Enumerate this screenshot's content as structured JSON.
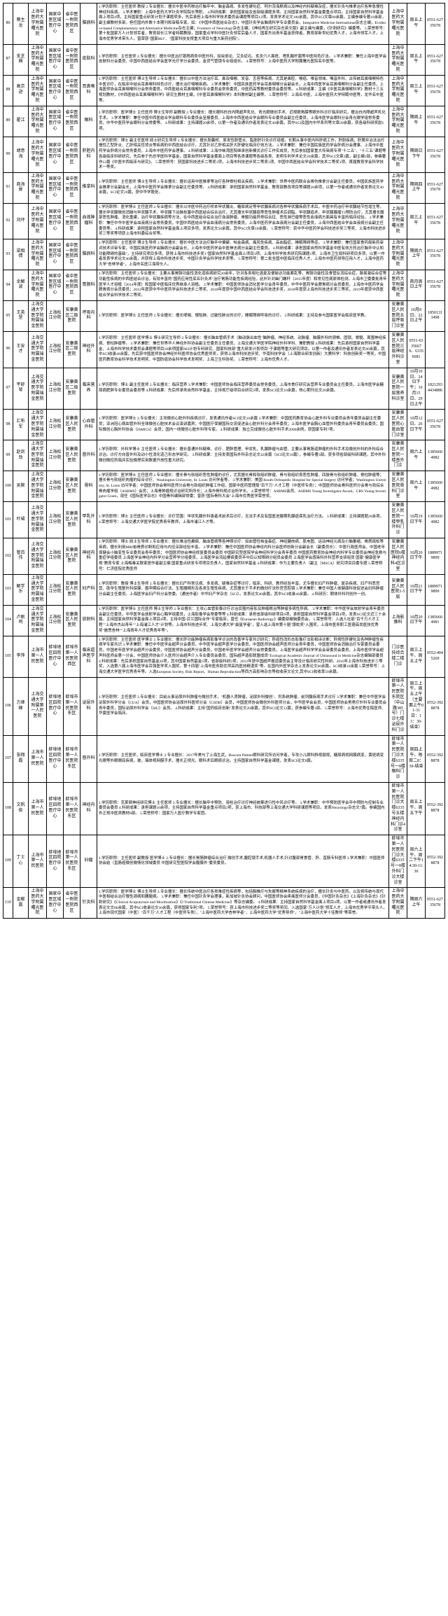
{
  "colors": {
    "border": "#000000",
    "bg": "#ffffff",
    "text": "#000000"
  },
  "fontSize": {
    "cell": 6,
    "desc": 5.5
  },
  "rows": [
    {
      "idx": "86",
      "name": "蔡主龙",
      "hosp": "上海中医药大学附属曙光医院",
      "org": "国家中医区域医疗中心",
      "type": "省中医一附院医院西区",
      "dept": "脑病科",
      "desc": "1.学历职称：主任医师 教授\n2.专业擅长：擅长中医非药物治疗脑卒中、脑金森病、多发性硬化症、阿尔茨海默病以及神经内科疑难杂症，擅长针灸与推拿治疗各种急慢性神经科疾病。\n3.学术兼职：上海中医药大学针灸学院院长等职。\n4.科研成果：承担国家级及省部级课题多项。主持国家自然科学基金委重点项目，主持国家自然科学基金面上项目4项，主持国家重点研发计划子课题项多，先后承担上海市科学技术委员会课题等项目12项。发表学术论文180余篇，其中SCI文章80余篇。主编参编专著10余部，副主编教材多部。担任国内外数十本期刊和审稿专家，如：《中国中西医结合杂志》，中国针灸学会脑病科学专业委员会，Integrative Medicine International杂志主编，Evidence-based Complementary and Alternative Medicine杂志主编；Frontiers of Neurology杂志主编；《神经再生研究杂志英文版》副主编与编委，《针刺研究》编委等。\n5.荣誉称号：第十批国家万人计划领军者，教育部长江学者特聘教授，国家重点学科中医针灸领军后备人才，国家杰出青年基金获得者，教育部新世纪优秀人才，上海市领军人才，上海市优秀学术带头人。曾荣获\"国家863\"、\"国家科技支撑重大项目与重大新药创院\"。",
      "loc": "上海中医药大学附属曙光医院",
      "time": "周五上午",
      "phone": "0551-62735678"
    },
    {
      "idx": "87",
      "name": "支芝娴",
      "hosp": "上海中医药大学附属曙光医院",
      "org": "国家中医区域医疗中心",
      "type": "省中医一附院医院西区",
      "dept": "皮肤科",
      "desc": "1.学历职称：主任医师\n2.专业擅长：擅长中医治疗银屑病类中医外科，如虫邪论、艾灸砭石、炙灸穴人面疮、嗜乳酸杆菌等中医特色疗法。\n3.学术兼职：兼任上海中医学会皮肤科分会委员、中国中西医结合学会医学光疗学分会委员、金货气管镜专业组组长。\n4.荣誉称号：上海中医药大学附属曙光医院名中医等。",
      "loc": "上海中医药大学附属曙光医院",
      "time": "周五上午",
      "phone": "0551-62735678"
    },
    {
      "idx": "88",
      "name": "高京逊",
      "hosp": "上海中医药大学附属曙光医院",
      "org": "国家中医区域医疗中心",
      "type": "省中医一附院医院西区",
      "dept": "耳鼻喉科",
      "desc": "1.学历职称：主任医师 博士生导师\n2.专业擅长：擅长以中医方法治疗耳、鼻及咽喉、发音、舌苔等疾病，尤其是鼻腔、喉癌、嗓音领域、嗓音外科、古传统耳鼻咽喉特色中医诊疗，在临床中结合耳鼻喉科特色诊疗，擅长治疗咽喉疾病。\n3.学术兼职：中国民族医药学会耳鼻咽喉分会副会长，上海中西医学会耳鼻咽喉科分会副主任委员，上海医师协会耳鼻咽喉科分会常务委员，中西医结合耳鼻咽喉科专业委员会常务委员，中医药高等教材委员会委员等。\n4.科研成果：主编《中医耳鼻咽喉科学》教材十三五规划教材，《中西医结合耳鼻咽喉科学》研究生教材主编，《中医耳鼻咽喉科学》本科教材副主编等。\n5.荣誉称号：上海名中医，上海中医药大学特聘中医等，龙华名中医等。",
      "loc": "上海中医药大学附属曙光医院",
      "time": "周三上午",
      "phone": "0551-62735678"
    },
    {
      "idx": "89",
      "name": "翟江",
      "hosp": "上海中医药大学附属曙光医院",
      "org": "国家中医区域医疗中心",
      "type": "省中医一附院医院西区",
      "dept": "眼科",
      "desc": "1.学历职称：医学博士 主任医师 博士生导师 副教授\n2.专业擅长：擅长眼科的白内障超声乳化、青光眼微创手术、近视眼角膜等眼外科诊疗临床研究，擅治白内障超声乳化手术。\n3.学术兼职：兼任中国中西医结合学会眼科专业委员会呈报委员，上海市中西医结合学会眼科专业委员会副主任委员，上海市医学会眼科分会青光眼学组常务委员，中华中医药学会眼科分会常委等。\n4.科研成果：主持课题20余项，以第一作者及通讯作者发表论文40余篇，其中SCI及国内中华系列等文章20余篇，获各级科研奖励5项。",
      "loc": "上海中医药大学附属曙光医院",
      "time": "隔周上午",
      "phone": "0551-62735678"
    },
    {
      "idx": "90",
      "name": "胡意海",
      "hosp": "上海中医药大学附属曙光医院",
      "org": "国家中医区域医疗中心",
      "type": "省中医一附院医院西区",
      "dept": "肝胆内科",
      "desc": "1.学历职称：博士 副主任医师 硕士研究生导师\n2.专业擅长：擅长胆囊桥、原发性胆管炎、脂肪肝针灸诊疗培植，长期从事中医内科肝病工作，肝胆疾病，肝脾并治法治疗慢性乙型肝炎、乙肝相关性肾炎等疾病的中西医结合诊疗，尤其针对乙肝相关肝大肝硬化临床疗效方法。\n3.学术兼职：兼任中国民族医药学会肝病分会理事、上海市中医药学会肝病分会常务委员，上海市中医药学会理事。\n4.科研成果：上海中峡湾医院继承创新模式诊疗工作实成员，先后参加国家重大传染病专项\"十二五\"、\"十三五\"课题等各级临床科研研究，先后参于伤总学医科学基金，国家自然科学基金委面上项目等各类课题等各级各类、发明专利学术论文20余篇，其中SCI文章3篇，副主编1部，参编著作12篇《中医中西临床与研究》。\n5.荣誉称号：获国家科技进步二等奖1项，上海市科技进步奖二等奖1项、中国中西医结合学会科学技术二等奖1项、首届教育学会科学技术一等奖。",
      "loc": "上海中医药大学附属曙光医院",
      "time": "隔周日下午",
      "phone": "0551-62735678"
    },
    {
      "idx": "91",
      "name": "商海曼",
      "hosp": "上海中医药大学附属曙光医院",
      "org": "国家中医区域医疗中心",
      "type": "省中医一附院医院西区",
      "dept": "推拿科",
      "desc": "1.学历职称：主任医师 博士生导师\n2.专业擅长：擅长运用中医推拿等治疗各种脊柱相关疾病。\n3.学术兼职：世界中医药联合会骨伤推拿分会副主任委员，中国民族医药学会推拿分会副会长，上海市中医药学会推拿分会副主任委员等。\n4.科研成果：承担国家自然科学基金、教育部教改项目等课题20余项，以第一作者或通讯作者发表论文40余篇，SCI论文20篇，获中华学股处。",
      "loc": "上海中医药大学附属曙光医院",
      "time": "隔周四上午",
      "phone": "0551-62735678"
    },
    {
      "idx": "92",
      "name": "刘坪",
      "hosp": "上海中医药大学附属曙光医院",
      "org": "国家中医区域医疗中心",
      "type": "省中医一附院医院西区",
      "dept": "血液肿瘤科",
      "desc": "1.学历职称：医学博士 主任医师\n2.专业擅长：擅长以中医中药治疗桥本甲状腺炎、糖尿病足等甲状腺疾病对各种甲状腺疾病手术后，中医中药治疗甲状腺结节性增生等，擅长甲状腺微创消融与甲状腺手术、甲状腺下动脉栓塞中西医结合综合治疗，尤其擅长甲状腺癌等恶性肿瘤术后调脂、甲状腺癌术、甲状腺腺瘤T3预防治疗，尤其擅长腹部恶性肿瘤、消化重建，治疗甲状腺疾病等方法，在中西医结合综合治疗血液肿瘤、骨髓功能异常综合征、恶性淋巴瘤等恶性血液病方面具有丰富的临床经验。\n3.学术兼职：兼任中华中医学会血液病分会常务委员，中国中西医结合学会血液病分会常务委员，上海中医药学会血液病分会副主任委员，上海中西医结合学会血液病分会副主任委员等。\n4.科研成果：承担国家自然科学基金面上项目多项，发表论文50余篇，其中SCI文章10余篇。\n5.荣誉称号：获中华中医药学会科技进步奖三等奖、上海市科技进步奖三等奖等项获上海市科委综合奖等。",
      "loc": "上海中医药大学附属曙光医院",
      "time": "周三上午",
      "phone": "0551-62735678"
    },
    {
      "idx": "93",
      "name": "梁相倩",
      "hosp": "上海中医药大学附属曙光医院",
      "org": "国家中医区域医疗中心",
      "type": "省中医一附院医院西区",
      "dept": "脑病科",
      "desc": "1.学历职称：主任医师 博士生导师\n2.专业擅长：擅长中医方法治疗脑卒中偏僻、帕金森病、痛风性疾病、高血脂症、睡眠障碍等症。\n3.学术兼职：兼任国家食药局新药审评技术评审专家，中国民族医药学会脑病分会副会长，上海市中医药学会中医神志病分会副主任委员。\n4.科研成果：承担国家自然科学基金中医有效方药治疗脑卒中认知功能障碍的基础\"，主持研究项目多项，获得上海市科技进步奖1\"国家自然科学基金面上项目3项，上海市科学技术研究院课题1项、上海市卫生局科研项目多项，以第一作者发表学术论文40余篇，并获得上海市科技进步奖、中国针灸学会科学技术奖等。\n5.荣誉称号：第二批全国中医临床优秀人才，上海市中医药领导应用人才，上海中医药大学\"杏林学者\"，上海市名医江海带头人。",
      "loc": "上海中医药大学附属曙光医院",
      "time": "隔周六上午",
      "phone": "0551-62735678"
    },
    {
      "idx": "94",
      "name": "余解波",
      "hosp": "上海中医药大学附属曙光医院",
      "org": "国家中医区域医疗中心",
      "type": "省中医一附院医院西区",
      "dept": "胃肠科",
      "desc": "1.学历职称：主任医师\n2.专业擅长：主要从事胃肠功能性消化道疾病研究20余年，针对各类呕吐函复及便秘达功能紊乱等，胃肠功能性及食管反流综合症，肠易激综合症等功能性疾病的中西医结合诊治，有较丰富的\"国药应用性底名针灸术\"治疗胃肠功能性疾病经验，此外针对幽门螺杆（2015年度）和常见性病原体检测，上海市卫委委批青年医学人才培植（2014年度）和国家中医临床优秀继承人培植。\n3.学术兼职：中国医师协会消化医学分会青年委员，中华中医药学会脾胃病分会员委员，上海市中医药学会脾胃病分会员委员；2012年度获中华中医药学会科技进步二等奖、2018年度获中国中西医结合学会科技进步奖，2018年度获上海市科技进步奖三等奖，2019年度获中西医结合学会科学技术二等奖。",
      "loc": "上海中医药大学附属曙光医院",
      "time": "首月周日上午",
      "phone": "0551-62735678"
    },
    {
      "idx": "95",
      "name": "王英罡",
      "hosp": "上海交通大学医学院附属瑞金医院",
      "org": "上海松江分院",
      "type": "安康黄区二级医院",
      "dept": "呼吸内科",
      "desc": "1.学历职称：医学博士 主任医师\n2.专业擅长：擅长哮喘、慢阻肺、过敏性肺炎的诊疗，睡眠障碍呼吸的诊疗。\n3.科研成果：主持及参与国家医学会临床医学教。",
      "loc": "安康黄区人民医院五层呼吸门诊室",
      "time": "10月8日、22日上午",
      "phone": "18501313498"
    },
    {
      "idx": "96",
      "name": "王安才",
      "hosp": "上海交通大学医学院附属瑞金医院",
      "org": "上海松江分院",
      "type": "安康黄区二级医院",
      "dept": "神经外科",
      "desc": "1.学历职称：主任医师 医学博士 博士研究生导师\n2.专业擅长：擅长脑血管病手术（脑动脉出血性\"脑肿瘤、神经系统、动脉瘤、脑膜外科的颈椎、固锁、脊髓、周围神经疾病、脊柱肿瘤等。\n3.学术兼职：兼任世界华人神经外科协会副主任委员主任委员，上海交通大学医学院神经外科学科、兼职教授\n4.科研成果：先后承担国家自然科学基金、上海市科学技术委员会课题等项目18余项国家863计划专利研究、国家科技部\"重大研发计划项目\"子课题等重大研究项目。以第一作者及通讯作者发表论文80余篇，其中SCI收录40余篇，先后获中国医师协会神经外科医师协会优秀医师奖，获得上海市科技进步奖、华南科技学会（上海联合研发创新）大赛科学：科技创新奖一等奖，中国医药教育协会科学技术发明奖、中国防癌协会科学技术发明奖、上海卫生科协奖。\n5.荣誉称号：上海市优秀人才。",
      "loc": "安康黄区人民医院三层神经外科诊室",
      "time": "0551-63356679、63356681",
      "phone": ""
    },
    {
      "idx": "97",
      "name": "平舒琴",
      "hosp": "上海交通大学医学院附属瑞金医院",
      "org": "上海松江分院",
      "type": "安康黄区二级医院",
      "dept": "临床营养",
      "desc": "1.学历职称：博士 副主任医师\n2.专业擅长：临床营养\n3.学术兼职：中国医师协会临床营养委员会常务委员，上海市食疗研究会营养专业委员会主任委员，上海市医学会糖尿病肥胖专业委员会委员等\n4.科研成果：先后师承务自然科学基金，主持视厅级项目合研究3项，发表SCI论文10余篇，核心期刊论文20余篇。",
      "loc": "安康黄区人民医院一层营养科诊室",
      "time": "10月10日、24日下午；10月15日、29日上午",
      "phone": "18212934434886"
    },
    {
      "idx": "98",
      "name": "汇布军",
      "hosp": "上海交通大学医学院附属瑞金医院",
      "org": "上海松江分院",
      "type": "安康黄区人民医院",
      "dept": "心血管外科",
      "desc": "1.学历职称：医学博士\n2.专业擅长：主攻微创心脏外科疾病诊疗，发表通讯作者SCI论文10余篇\n3.学术兼职：中国医药教育协会心脏外科专业委员会青年委员会副主任委员；亚洲冠心病血管外科全球微创心脏技术会议演讲嘉宾；中国医疗保健国际交流促进会心脏外科分会青年委员；上海市医学会胸心血管外科委员会青年委员会委员；国际微创心胸外科协会（ISMICS）会员；国内一线微创心脏外科导专家。\n4.科研成果：独立完成微创心脏外科手术2000余例，获国家专利7项。",
      "loc": "安康黄区人民医院心脏血管门诊室",
      "time": "10月12日、26日下午",
      "phone": "0551-62735678"
    },
    {
      "idx": "99",
      "name": "赵剑劲",
      "hosp": "上海交通大学医学院附属瑞金医院",
      "org": "上海松江分院",
      "type": "安康黄区人民医院",
      "dept": "普外科",
      "desc": "1.学历职称：外科学博士 主任医师\n2.专业擅长：擅长普通外科疑难、诊疗、肥胖管理、甲状乳、乳腺肿瘤与血管、主要从事胃肠道肿瘤的外科手术及微创外科的外科综合诊治。诊疗方向普外科及动小性消化道己形态学研究。\n3.科研成果：主持发表国际外科杂志论文42余篇（SCI论文16篇），参编专著3部。获多项省部级科研课题，其中外科微创微控药临床实验微焊实用数据开放性重大研究。",
      "loc": "安康黄区人民医院一楼普外门诊",
      "time": "周六上午",
      "phone": "13856604982"
    },
    {
      "idx": "100",
      "name": "吴腕",
      "hosp": "上海交通大学医学院附属瑞金医院",
      "org": "上海松江分院",
      "type": "安康黄区人民医院",
      "dept": "骨科",
      "desc": "1.学历职称：医学博士 主任医师\n2.专业擅长：擅长骨与软组织恶性肿瘤的诊疗，尤其擅长骨和软组织肿瘤、骨与软组织良恶性肿瘤、四肢骨与软组织肿瘤、脊柱肿瘤等；擅长骨与软组织肉瘤的综合诊疗、Washington University, St. Louis 访问学者等。\n3.学术兼职：美国 Knuth Orthopedic Hospital for Special Surgery 访问学者；Washington University, St. Louis 访问学者；中国医师协会骨科医师分会骨与软组织肿瘤工作组，国家中医药管理局\"百千万\"人才工程（中医师专类）；中国医师协会骨科医师分会骨与软综合骨肉瘤学组（ASBMS）会员；上海骨肿瘤规诊治研究所所长；上海市骨科规诊治所学长。\n4.荣誉称号：ASBMS会员、ASBMS Young Investigator Award、CBS Young Investigator Grant，现任《国际医学杂志》中国骨科编辑部常委；曾获\"国际骨科大会\"上海市优秀医学荣誉奖。",
      "loc": "安康黄区人民医院骨科门诊室",
      "time": "周六上午",
      "phone": "13856604982"
    },
    {
      "idx": "101",
      "name": "叶珺",
      "hosp": "上海交通大学医学院附属瑞金医院",
      "org": "上海松江分院",
      "type": "安康黄区人民医院",
      "dept": "甲乳外科",
      "desc": "1.学历职称：博士 主任医师\n2.专业擅长：诊疗范围：甲状乳腺外科患者术前术后诊疗，无法手术及有国医进展期乳腺癌保乳治疗方法。\n3.科研成果：主持课题题20余项。\n4.荣誉称号：上海交通大学医学院优秀青年教师，上海市浦江人才等。",
      "loc": "安康黄区人民医院一楼甲乳外科门诊",
      "time": "10月19日下午",
      "phone": "13856604982"
    },
    {
      "idx": "102",
      "name": "管百伟",
      "hosp": "上海交通大学医学院附属瑞金医院",
      "org": "上海松江分院",
      "type": "安康黄区人民医院",
      "dept": "神经内科",
      "desc": "1.学历职称：博士 硕士生导师\n2.专业擅长：擅长难治性癫痫、脑血管病等各神筛诊疗：如血管性帕金森症、神经腱肉病、肌电图、运动神经元病及小脑萎缩、骨质疏松等疾病，擅长利用MRI裕骨质诊断和应用与内径深部经验丰富。\n3.学术兼职：兼任中国医师协会神经内科分会医师创新分会副会长（副委员长）：中医行政医师会、中国老年保健会小脑变性专业委员会青年委员；\n中国医师协会神经修复委员会委员\n中国研究型医院学会神经科学分会青年委员\n中国医药教育协会神经内科学专业委员会神经急救与重症学组委员\n上海医学会神经内科学分会营养学分组委员，上海医学会流延梗疯委员卒中后认知障碍分组员会委员\n上海医学会感染科外科营养支研组员\n国家\"健康医学规\"教育专家\n上海梅毒关联家居作者副主编\n国家重点研发专项项目负责人，国家自然科学基金\n4.科研成果：作为主要负责人（副主（MSCA）研究项目目委专题\n5.荣誉称号：仁济医院优秀医师",
      "loc": "安康黄区人民医院6楼神经内科4区诊室",
      "time": "10月20日下午",
      "phone": "18899719899"
    },
    {
      "idx": "103",
      "name": "解学乐",
      "hosp": "上海交通大学医学院附属瑞金医院",
      "org": "上海松江分院",
      "type": "安康黄区人民医院",
      "dept": "妇产科",
      "desc": "1.学历职称：教授 博士生导师\n2.专业擅长：擅长妇产科常见病、多发病、疑难杂症等诊疗，临床、科研、教师经验丰富。尤专擅长妇产科肿瘤、复杂疾病、妇产科恶宫营、助孕生殖整外科保健、围孕期综合疗法，生殖器畸形及各类生殖性疾病，尤其擅长于手术的微创疗法秒宫宫腔镜\n3.学术兼职：兼任中国人体健康科技促进会妇科肿瘤分会副主任委员。上海医学会妇产科分会常委。（通信作者）中华妇产学杂志（SCI）。发表论文40余篇，其中SCI收录40余篇。\n4.科研历：期体外科列创作一创。",
      "loc": "安康黄区人民医院1-5层",
      "time": "10月21日下午",
      "phone": "18899719899"
    },
    {
      "idx": "104",
      "name": "卢刚鸣",
      "hosp": "上海交通大学医学院附属瑞金医院",
      "org": "上海松江分院",
      "type": "安康黄区人民医院",
      "dept": "放射科",
      "desc": "1.学历职称：医学博士 主任医师 博士生导师\n2.专业擅长：主攻心血管影像诊疗诊治目围内容影及肿瘤根治等肿瘤多病性肝病。\n3.学术兼职：中华医学会放射学会青年委员会副主任委员，中华医学会放射学会心胸学组委员，上海影像学会常委等等\n4.科研成果：承担省部级科研项目6项，承担国家自然科学基金项目4项，发表SCI论文近三十余篇。主持国家自然科学基金面上项目4项，主持中国-芬兰国际合作\"专家临床。曾任《European Radiology》编委部编辑委员会。\n5.荣誉称号：入选人社部\"百千万人才工程\"\"上海市杰出青年\"\"上海浦江人才\"计划等。上海市科技进步奖、上海交通大学\"晨星学者\"，曾入选上海市第十届\"银蛇奖\"入围奖，上海市医务职工医德高尚医技优秀奖\"施思杏林\"\"上海青年人才优秀青年等\"。",
      "loc": "上海影像科",
      "time": "10月20日下午",
      "phone": "13856604981"
    },
    {
      "idx": "105",
      "name": "李萍",
      "hosp": "上海市第一人民医院",
      "org": "蚌埠地区四院医疗中心",
      "type": "蚌埠市第一人民医院西区",
      "dept": "临床超声医学科",
      "desc": "1.学历职称：主任医师 医学博士\n2.专业擅长：擅长肝功能肿瘤疾病影像学诊治的改善学专家共识研究；肝癌性改形态影像疗法影相诗诊断；肝病性肝硬化及各种肿瘤性疾病学专家共识\n3.学术兼职：兼任中华医学会超声分会委员，中华医学会超声医学分会委员，中国医师协会超声医师分会青年委员，中国医师协会消融治疗专家委员会委员，中国老年医学学会超声分会委员，中国医师协会超声分会委员，中国老年医学学会超声分会常委委员，上海医学会超声科学学会会审委员会委员，上海市医师学会超声科医师会第一分会，中国医师协会介入医师分会超声介入专业委员会委员，国际超声造影联盟成员\"Ecological Academic Journal of Ultrasound in Medicine杂志编辑部委员\n4.科研成果：先后承担国家自然基金20项，其中国家自然基金5项，省部级科研2项，2012年获中国超声报道委员会主导设计临床研究性科研。2016年上海市科技进步三等奖，入选第八届上海市医学会百强医学奖入围奖，第十四届\"上海市医务助优师高尚医技精湛奖\"等。在国内外医学杂志上发表论文80余篇，SCI收录10余篇\n5.荣誉称号：上海交通大学医学优秀青年等。入选European Society, Risk Report、Human Reproduction等西方高影响杂志等收收英文论文,其中SCI收收率50余篇。",
      "loc": "门诊医技综合楼二楼门诊",
      "time": "周三上午、周五上午",
      "phone": "0552-4045269"
    },
    {
      "idx": "106",
      "name": "方继峰",
      "hosp": "上海交通大学附属第一人民医院",
      "org": "蚌埠地区四院医疗中心",
      "type": "蚌埠市第一人民医院东区",
      "dept": "泌尿外科",
      "desc": "1.学历职称：主任医师\n2.专业擅长：目前从事泌尿外科肿瘤与微创手术，\"机器人肾肿瘤，泌尿外科微创\"、列系统肿瘤、前列腺疾病手术诊疗\n3.学术兼职：兼任中华医学会泌尿外科学分会（CUA）会员，中国医师协会泌尿外科医师分会（CSDB）会员，中国医师协会微创外科医师分会，中华医学会会员，中国医师协会男男疗外科专业委员会青年委员，国际泌尿外科学会（SIU）会员。\n4.科研成果：主持\"国药临床创新\"发表论文20余篇，其中SCI论文12篇，获参编专著1部。\n5.荣誉称号：上海市优秀住院医师、华夏医学会临床。",
      "loc": "蚌埠市第一人民医院东院区（中山路385号）门诊七楼泌尿外科门诊",
      "time": "周三上午、周五上午（主要面上午01-31日：13：30-结束）",
      "phone": "0552-3928878"
    },
    {
      "idx": "107",
      "name": "张翔磊",
      "hosp": "上海市第一人民医院",
      "org": "蚌埠地区四院医疗中心",
      "type": "蚌埠市第一人民医院东区",
      "dept": "普外科",
      "desc": "1.学历职称：主任医师，临床医学博士\n2.专业擅长：2017年美与了上海生武，Bascom Palmer眼科研究所访问学者，专攻小儿眼科斜视弱视，糖尿病视网膜病变，黄斑病变光眼等外眼眼底疾病，玻，璃体视网膜手术，擅长正视光、眼科术后眼病诊治，主持国家自然科学基金课题，发表SCI论文8篇。",
      "loc": "蚌埠市第一人民医院门诊大楼6335号一8楼眼科门诊",
      "time": "周四上午、每周二8：30-结束",
      "phone": "0552-3928878"
    },
    {
      "idx": "108",
      "name": "文帆俊",
      "hosp": "上海市第一人民医院",
      "org": "蚌埠地区四院医疗中心",
      "type": "蚌埠市第一人民医院东区",
      "dept": "神经内科",
      "desc": "1.学历职称：克莱顿神经研究博士 主任医师\n2.专业擅长：擅长脑卒中预防、溶栓治疗诊疗神经统筹进行性中风诊疗等。\n3.学术兼职：中华预防医学会卒中预防与控制专业委员会委员\n4.科研成果：承担课题10余项，主持国家自然科学基金重点项目2项，获上海市、科技部等上海交通大学科研课题等项目，发表Neurology杂志文7篇。参编国内外正规中医类教材8部。\n5.荣誉称号：国家万人医疗教学专家团。",
      "loc": "蚌埠市第一人民医院门诊大楼6335号五楼神经内科门诊4诊室",
      "time": "周五上午、周五下午",
      "phone": "0552-3928878"
    },
    {
      "idx": "109",
      "name": "丁士心",
      "hosp": "上海市第一人民医院",
      "org": "蚌埠地区四院医疗中心",
      "type": "蚌埠市第一人民医院东区",
      "dept": "妇瘤",
      "desc": "1.学历职称：主任医师 副教授 医学博士\n2.专业擅长：擅长胃肠肿瘤综合治疗,微创手术,腹腔镜手术,机器人手术,针对腹部胃食管、肝、直肠专科医师\n3.学术兼职：中国医师协会结（直肠癌微创微情化领域委员\n中国研究型医院学会腹膜外\"委员委员。",
      "loc": "蚌埠市第一人民医院门诊大楼6335号一8楼外科门诊大楼诊室",
      "time": "周六上午、周二下午14:30-11:30",
      "phone": "0552-3928878"
    },
    {
      "idx": "110",
      "name": "金献震",
      "hosp": "上海中医药大学附属曙光医院",
      "org": "国家中医区域医疗中心",
      "type": "省中医一附院医院西区",
      "dept": "针灸科",
      "desc": "1.学历职称：医学博士 博士生导师\n2.专业擅长：擅长传统中医治疗各类难症性疾病等，包括胸推疗与失眠等精神系统疾病的治疗，擅长针灸与中医药，以及将传统与现代中医相结合治疗慢性颈病和腰腿病。\n3.学术兼职：兼任中国针灸学会理事，新加坡针灸协会顾问，中国医师协会疼痛医师分会委员，《中国针灸杂志》《上海针灸杂志》《针刺研究》《Clinical Acupuncture and Moxibustion》《J Traditional Chinese Medicine》等杂志编委。\n4.科研成果：主持国家自然科学基金面上项目4项，以第一作者或通讯作者发表论文文80余篇，其中SCI收录论文30余篇，获得国家专利7项。\n5.荣誉称号：获上海市科技进步奖二等奖等奖闰、入选国家\"万人计划\"领军人才，上海市优秀学平带头人，上海市现代国家（中医）\"百千万\"人才工程（中医师专类），\"上海中医药大学杏林学者\"，上海中医药大学\"优秀导师\"，\"上海中医药大学十佳教师\"等荣誉。",
      "loc": "上海中医药大学附属曙光医院",
      "time": "隔周六上午",
      "phone": "0551-62735678"
    }
  ]
}
